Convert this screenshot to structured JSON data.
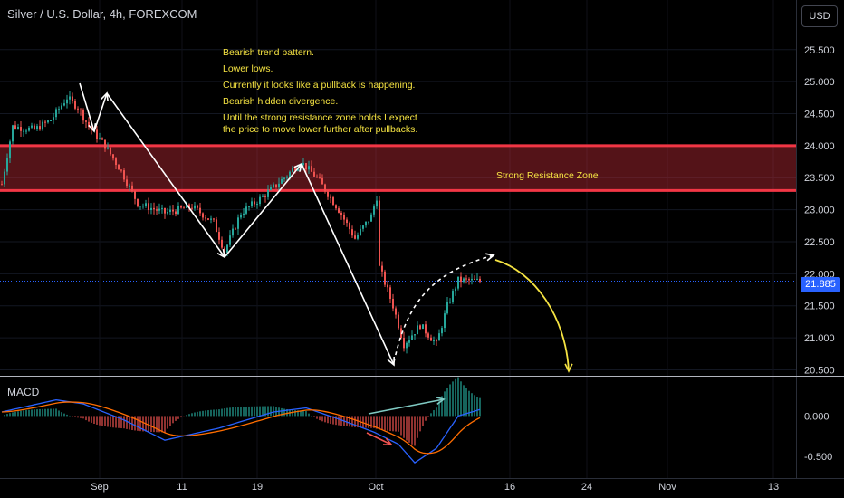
{
  "header": {
    "title": "Silver / U.S. Dollar, 4h, FOREXCOM"
  },
  "currency_button": "USD",
  "current_price": "21.885",
  "notes": [
    "Bearish trend pattern.",
    "Lower lows.",
    "Currently it looks like a pullback is happening.",
    "Bearish hidden divergence.",
    "Until the strong resistance zone holds I expect\nthe price to move lower further after pullbacks."
  ],
  "zone_label": "Strong Resistance Zone",
  "macd_label": "MACD",
  "colors": {
    "up": "#26a69a",
    "down": "#ef5350",
    "zone": "#f23645",
    "annotation": "#f5e342",
    "price_line": "#2962ff"
  },
  "chart_data": [
    {
      "type": "candlestick",
      "xlabel": "",
      "ylabel": "",
      "x_ticks": [
        "Sep",
        "11",
        "19",
        "Oct",
        "16",
        "24",
        "Nov",
        "13"
      ],
      "y_ticks": [
        "25.500",
        "25.000",
        "24.500",
        "24.000",
        "23.500",
        "23.000",
        "22.500",
        "22.000",
        "21.500",
        "21.000",
        "20.500"
      ],
      "ylim": [
        20.45,
        25.85
      ],
      "current_price": 21.885,
      "resistance_zone": {
        "low": 23.3,
        "high": 24.0
      },
      "price_path": [
        {
          "bar": 0,
          "price": 23.4
        },
        {
          "bar": 4,
          "price": 24.3
        },
        {
          "bar": 12,
          "price": 24.25
        },
        {
          "bar": 18,
          "price": 24.4
        },
        {
          "bar": 24,
          "price": 24.75
        },
        {
          "bar": 28,
          "price": 24.6
        },
        {
          "bar": 32,
          "price": 24.3
        },
        {
          "bar": 38,
          "price": 24.0
        },
        {
          "bar": 44,
          "price": 23.6
        },
        {
          "bar": 50,
          "price": 23.1
        },
        {
          "bar": 60,
          "price": 22.95
        },
        {
          "bar": 70,
          "price": 23.05
        },
        {
          "bar": 78,
          "price": 22.8
        },
        {
          "bar": 82,
          "price": 22.35
        },
        {
          "bar": 88,
          "price": 22.95
        },
        {
          "bar": 96,
          "price": 23.2
        },
        {
          "bar": 104,
          "price": 23.5
        },
        {
          "bar": 110,
          "price": 23.75
        },
        {
          "bar": 116,
          "price": 23.5
        },
        {
          "bar": 124,
          "price": 23.0
        },
        {
          "bar": 130,
          "price": 22.55
        },
        {
          "bar": 136,
          "price": 22.9
        },
        {
          "bar": 138,
          "price": 23.2
        },
        {
          "bar": 139,
          "price": 22.1
        },
        {
          "bar": 144,
          "price": 21.5
        },
        {
          "bar": 148,
          "price": 20.9
        },
        {
          "bar": 154,
          "price": 21.2
        },
        {
          "bar": 160,
          "price": 20.9
        },
        {
          "bar": 164,
          "price": 21.5
        },
        {
          "bar": 168,
          "price": 21.9
        },
        {
          "bar": 176,
          "price": 21.885
        }
      ],
      "macd_panel": {
        "y_ticks": [
          "0.000",
          "-0.500"
        ],
        "ylim": [
          -0.68,
          0.42
        ],
        "macd_path": [
          {
            "bar": 0,
            "value": 0.05
          },
          {
            "bar": 20,
            "value": 0.2
          },
          {
            "bar": 30,
            "value": 0.15
          },
          {
            "bar": 45,
            "value": -0.05
          },
          {
            "bar": 60,
            "value": -0.3
          },
          {
            "bar": 80,
            "value": -0.15
          },
          {
            "bar": 100,
            "value": 0.05
          },
          {
            "bar": 112,
            "value": 0.1
          },
          {
            "bar": 125,
            "value": -0.05
          },
          {
            "bar": 137,
            "value": -0.2
          },
          {
            "bar": 146,
            "value": -0.35
          },
          {
            "bar": 152,
            "value": -0.58
          },
          {
            "bar": 160,
            "value": -0.4
          },
          {
            "bar": 168,
            "value": 0.0
          },
          {
            "bar": 176,
            "value": 0.08
          }
        ]
      }
    }
  ]
}
